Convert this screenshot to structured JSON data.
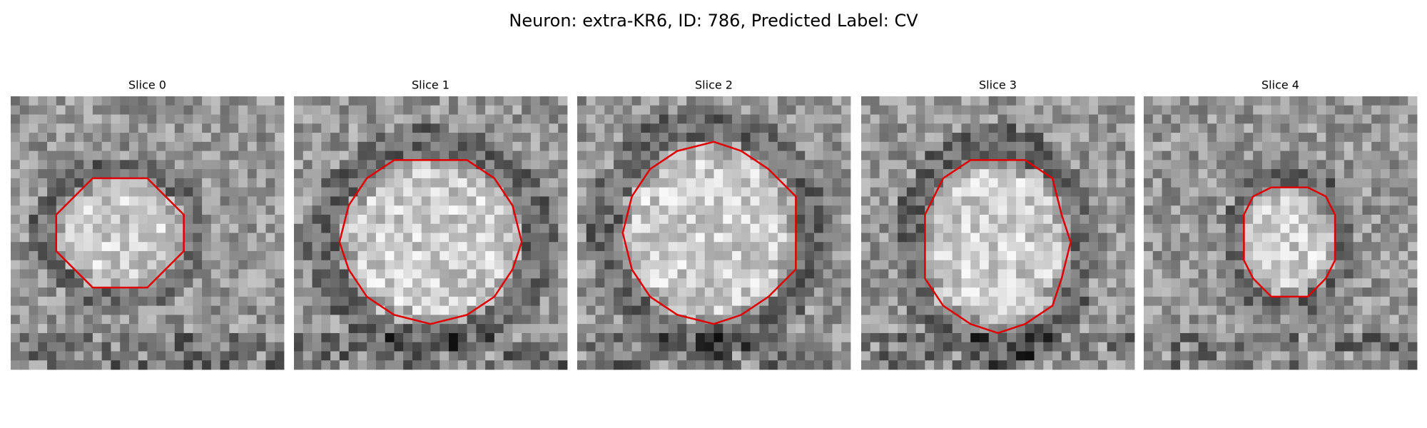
{
  "title": "Neuron: extra-KR6, ID: 786, Predicted Label: CV",
  "panels": [
    {
      "title": "Slice 0"
    },
    {
      "title": "Slice 1"
    },
    {
      "title": "Slice 2"
    },
    {
      "title": "Slice 3"
    },
    {
      "title": "Slice 4"
    }
  ]
}
